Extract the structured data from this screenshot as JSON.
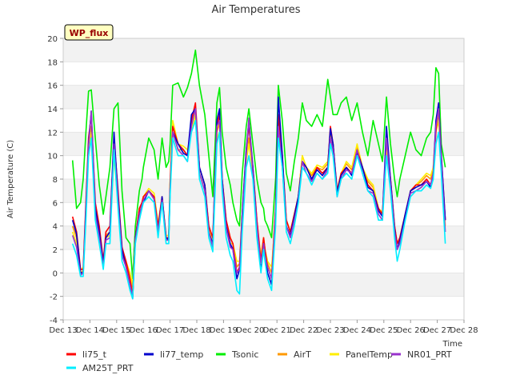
{
  "chart_data": {
    "type": "line",
    "title": "Air Temperatures",
    "xlabel": "Time",
    "ylabel": "Air Temperature (C)",
    "badge": "WP_flux",
    "xlim": [
      13,
      28
    ],
    "ylim": [
      -4,
      20
    ],
    "x_ticks": [
      {
        "value": 13,
        "label": "Dec 13"
      },
      {
        "value": 14,
        "label": "Dec 14"
      },
      {
        "value": 15,
        "label": "Dec 15"
      },
      {
        "value": 16,
        "label": "Dec 16"
      },
      {
        "value": 17,
        "label": "Dec 17"
      },
      {
        "value": 18,
        "label": "Dec 18"
      },
      {
        "value": 19,
        "label": "Dec 19"
      },
      {
        "value": 20,
        "label": "Dec 20"
      },
      {
        "value": 21,
        "label": "Dec 21"
      },
      {
        "value": 22,
        "label": "Dec 22"
      },
      {
        "value": 23,
        "label": "Dec 23"
      },
      {
        "value": 24,
        "label": "Dec 24"
      },
      {
        "value": 25,
        "label": "Dec 25"
      },
      {
        "value": 26,
        "label": "Dec 26"
      },
      {
        "value": 27,
        "label": "Dec 27"
      },
      {
        "value": 28,
        "label": "Dec 28"
      }
    ],
    "y_ticks": [
      -4,
      -2,
      0,
      2,
      4,
      6,
      8,
      10,
      12,
      14,
      16,
      18,
      20
    ],
    "grid": "horizontal bands",
    "legend_position": "bottom",
    "x": [
      13.35,
      13.5,
      13.65,
      13.75,
      13.85,
      13.95,
      14.05,
      14.2,
      14.35,
      14.5,
      14.6,
      14.75,
      14.9,
      15.05,
      15.2,
      15.35,
      15.5,
      15.6,
      15.7,
      15.85,
      15.95,
      16.0,
      16.2,
      16.4,
      16.55,
      16.7,
      16.85,
      16.95,
      17.0,
      17.1,
      17.3,
      17.5,
      17.65,
      17.8,
      17.95,
      18.1,
      18.3,
      18.45,
      18.6,
      18.75,
      18.85,
      18.95,
      19.1,
      19.25,
      19.35,
      19.5,
      19.6,
      19.7,
      19.85,
      19.95,
      20.1,
      20.25,
      20.4,
      20.5,
      20.55,
      20.65,
      20.8,
      20.95,
      21.05,
      21.2,
      21.35,
      21.5,
      21.65,
      21.8,
      21.95,
      22.1,
      22.3,
      22.5,
      22.7,
      22.9,
      23.0,
      23.1,
      23.25,
      23.4,
      23.6,
      23.8,
      24.0,
      24.2,
      24.4,
      24.6,
      24.8,
      24.95,
      25.1,
      25.25,
      25.4,
      25.5,
      25.6,
      25.8,
      26.0,
      26.2,
      26.4,
      26.6,
      26.75,
      26.85,
      26.95,
      27.05,
      27.15,
      27.3
    ],
    "series": [
      {
        "name": "li75_t",
        "color": "#ff0000",
        "values": [
          4.8,
          3.5,
          0.3,
          0.3,
          6.0,
          11.5,
          13.5,
          6.0,
          4.0,
          1.0,
          3.5,
          4.0,
          11.5,
          7.0,
          2.2,
          1.0,
          -0.5,
          -2.0,
          3.0,
          5.5,
          6.0,
          6.5,
          7.0,
          6.5,
          4.0,
          6.5,
          3.0,
          3.0,
          7.5,
          12.5,
          11.0,
          10.5,
          10.0,
          13.0,
          14.5,
          9.0,
          7.5,
          4.0,
          3.0,
          12.5,
          13.5,
          8.0,
          4.5,
          3.0,
          2.5,
          0.0,
          0.5,
          5.0,
          10.5,
          12.5,
          9.0,
          4.5,
          1.0,
          3.0,
          2.0,
          0.5,
          -0.5,
          5.5,
          13.5,
          10.0,
          4.5,
          3.5,
          5.0,
          6.5,
          9.5,
          9.0,
          8.0,
          9.0,
          8.5,
          9.0,
          12.5,
          11.0,
          7.0,
          8.5,
          9.0,
          8.5,
          10.5,
          9.0,
          7.5,
          7.0,
          5.5,
          5.0,
          11.5,
          8.0,
          4.0,
          2.5,
          3.0,
          5.0,
          7.0,
          7.5,
          7.5,
          8.0,
          7.5,
          8.5,
          12.0,
          14.5,
          10.0,
          4.5
        ]
      },
      {
        "name": "li77_temp",
        "color": "#0000cc",
        "values": [
          4.5,
          3.3,
          0.0,
          0.0,
          5.5,
          11.0,
          13.8,
          5.5,
          3.5,
          0.8,
          3.0,
          3.5,
          12.0,
          6.5,
          2.0,
          0.5,
          -1.0,
          -2.2,
          3.0,
          5.0,
          5.8,
          6.0,
          7.0,
          6.3,
          3.5,
          6.5,
          3.0,
          2.8,
          7.0,
          12.0,
          11.0,
          10.2,
          10.0,
          13.5,
          14.0,
          9.0,
          7.5,
          3.5,
          2.5,
          13.0,
          14.0,
          8.0,
          4.0,
          2.5,
          2.0,
          -0.5,
          0.3,
          5.0,
          10.5,
          13.0,
          9.0,
          4.0,
          0.5,
          2.5,
          1.5,
          0.0,
          -1.0,
          5.0,
          15.0,
          10.0,
          4.0,
          3.2,
          4.8,
          6.5,
          9.5,
          9.0,
          8.0,
          8.8,
          8.3,
          9.0,
          12.3,
          11.0,
          6.8,
          8.3,
          9.0,
          8.3,
          10.3,
          9.0,
          7.3,
          7.0,
          5.3,
          4.8,
          12.5,
          8.0,
          3.8,
          2.0,
          2.8,
          5.0,
          7.0,
          7.3,
          7.5,
          7.8,
          7.3,
          8.5,
          13.0,
          14.5,
          10.0,
          4.5
        ]
      },
      {
        "name": "Tsonic",
        "color": "#00ee00",
        "values": [
          9.6,
          5.5,
          6.0,
          8.0,
          12.0,
          15.5,
          15.6,
          11.5,
          7.5,
          5.0,
          6.5,
          9.0,
          14.0,
          14.5,
          7.0,
          3.0,
          2.5,
          -0.5,
          4.0,
          7.0,
          8.0,
          9.0,
          11.5,
          10.5,
          8.0,
          11.5,
          9.0,
          9.5,
          11.0,
          16.0,
          16.2,
          15.0,
          15.8,
          17.0,
          19.0,
          16.0,
          13.5,
          10.0,
          6.5,
          14.5,
          15.8,
          12.0,
          9.0,
          7.5,
          6.0,
          4.5,
          4.0,
          8.5,
          12.5,
          14.0,
          11.0,
          8.0,
          6.0,
          5.5,
          4.5,
          4.0,
          3.0,
          8.0,
          16.0,
          13.0,
          8.5,
          7.0,
          9.5,
          11.5,
          14.5,
          13.0,
          12.5,
          13.5,
          12.5,
          16.5,
          15.0,
          13.5,
          13.5,
          14.5,
          15.0,
          13.0,
          14.5,
          12.0,
          10.0,
          13.0,
          11.0,
          9.5,
          15.0,
          11.0,
          8.0,
          6.5,
          8.0,
          10.0,
          12.0,
          10.5,
          10.0,
          11.5,
          12.0,
          13.5,
          17.5,
          17.0,
          11.0,
          9.0
        ]
      },
      {
        "name": "AirT",
        "color": "#ff9900",
        "values": [
          4.0,
          3.0,
          0.0,
          0.2,
          5.5,
          11.0,
          12.5,
          5.5,
          3.5,
          1.0,
          3.2,
          3.5,
          10.5,
          6.5,
          2.0,
          0.8,
          -0.5,
          -1.5,
          3.0,
          5.5,
          6.0,
          6.5,
          7.0,
          6.5,
          4.0,
          6.0,
          3.0,
          3.0,
          7.5,
          12.0,
          10.5,
          10.5,
          10.0,
          12.5,
          14.0,
          9.0,
          7.5,
          4.0,
          2.8,
          12.0,
          12.8,
          8.0,
          4.5,
          3.0,
          2.5,
          0.5,
          0.8,
          5.0,
          10.0,
          11.5,
          9.0,
          4.5,
          1.2,
          3.0,
          2.0,
          0.8,
          0.0,
          5.5,
          13.0,
          9.5,
          4.5,
          3.5,
          5.0,
          6.5,
          10.0,
          9.0,
          8.3,
          9.0,
          8.8,
          9.3,
          12.0,
          11.0,
          7.0,
          8.5,
          9.3,
          8.8,
          10.8,
          9.0,
          7.8,
          7.3,
          5.5,
          5.0,
          11.0,
          8.0,
          4.0,
          2.5,
          3.0,
          5.0,
          7.0,
          7.5,
          7.8,
          8.3,
          8.0,
          9.0,
          12.5,
          13.5,
          9.5,
          4.5
        ]
      },
      {
        "name": "PanelTemp",
        "color": "#ffee00",
        "values": [
          3.5,
          2.5,
          0.2,
          0.5,
          5.0,
          10.5,
          12.0,
          5.0,
          3.0,
          1.0,
          3.0,
          3.2,
          10.0,
          6.0,
          2.0,
          1.0,
          0.0,
          -1.0,
          3.0,
          5.0,
          6.0,
          6.5,
          7.2,
          6.8,
          4.2,
          6.5,
          3.2,
          3.2,
          7.8,
          13.0,
          11.0,
          10.8,
          10.5,
          12.0,
          13.5,
          8.5,
          7.0,
          4.0,
          2.5,
          11.5,
          12.0,
          7.5,
          4.0,
          2.5,
          2.5,
          1.0,
          1.0,
          5.0,
          9.5,
          11.0,
          8.5,
          4.0,
          1.5,
          3.0,
          2.0,
          1.0,
          0.5,
          5.0,
          12.0,
          9.0,
          4.5,
          3.5,
          5.0,
          6.5,
          10.0,
          9.0,
          8.5,
          9.2,
          9.0,
          9.5,
          11.5,
          10.5,
          7.0,
          8.5,
          9.5,
          9.0,
          11.0,
          9.0,
          8.0,
          7.5,
          5.5,
          5.2,
          10.5,
          7.5,
          4.0,
          2.5,
          3.0,
          5.0,
          7.0,
          7.5,
          8.0,
          8.5,
          8.3,
          9.0,
          12.0,
          13.0,
          9.0,
          4.0
        ]
      },
      {
        "name": "NR01_PRT",
        "color": "#9933cc",
        "values": [
          3.2,
          2.2,
          -0.2,
          0.0,
          5.0,
          10.8,
          13.8,
          5.0,
          3.0,
          0.5,
          2.8,
          3.0,
          11.0,
          6.0,
          1.5,
          0.5,
          -1.0,
          -2.0,
          2.8,
          5.0,
          5.8,
          6.2,
          7.0,
          6.3,
          3.5,
          6.2,
          2.8,
          2.8,
          7.0,
          12.0,
          10.5,
          10.0,
          9.5,
          12.5,
          14.0,
          8.5,
          7.0,
          3.5,
          2.2,
          12.5,
          13.0,
          7.5,
          3.8,
          2.2,
          2.0,
          0.0,
          0.3,
          4.5,
          10.0,
          13.2,
          8.5,
          4.0,
          0.8,
          2.5,
          1.5,
          0.5,
          -0.5,
          5.0,
          12.5,
          9.0,
          4.0,
          3.0,
          4.5,
          6.0,
          9.5,
          8.5,
          7.8,
          8.5,
          8.0,
          8.8,
          11.5,
          10.5,
          6.5,
          8.0,
          8.8,
          8.5,
          10.5,
          8.5,
          7.0,
          6.8,
          5.0,
          4.5,
          11.5,
          7.5,
          3.5,
          2.0,
          2.5,
          4.5,
          6.8,
          7.0,
          7.3,
          7.8,
          7.5,
          8.5,
          12.5,
          14.0,
          9.5,
          3.5
        ]
      },
      {
        "name": "AM25T_PRT",
        "color": "#00eeff",
        "values": [
          2.5,
          1.5,
          -0.3,
          -0.3,
          4.5,
          10.0,
          11.5,
          4.5,
          2.5,
          0.3,
          2.5,
          2.5,
          10.5,
          5.5,
          1.0,
          0.0,
          -1.5,
          -2.2,
          2.5,
          4.5,
          5.5,
          6.0,
          6.5,
          6.0,
          3.0,
          6.0,
          2.5,
          2.5,
          6.5,
          11.5,
          10.0,
          10.0,
          9.5,
          12.0,
          13.0,
          8.0,
          6.5,
          3.0,
          1.8,
          11.0,
          12.0,
          7.0,
          3.0,
          1.5,
          1.0,
          -1.5,
          -1.8,
          3.5,
          9.0,
          10.0,
          8.0,
          3.0,
          0.0,
          2.0,
          1.0,
          -0.5,
          -1.5,
          4.0,
          11.5,
          9.0,
          3.5,
          2.5,
          4.0,
          6.0,
          9.0,
          8.5,
          7.5,
          8.5,
          8.0,
          8.5,
          11.0,
          10.0,
          6.5,
          8.0,
          8.5,
          8.0,
          10.0,
          8.5,
          7.0,
          6.5,
          4.5,
          4.5,
          10.0,
          7.0,
          3.0,
          1.0,
          2.0,
          4.5,
          6.5,
          7.0,
          7.0,
          7.5,
          7.2,
          8.0,
          11.0,
          12.0,
          8.5,
          2.5
        ]
      }
    ]
  }
}
